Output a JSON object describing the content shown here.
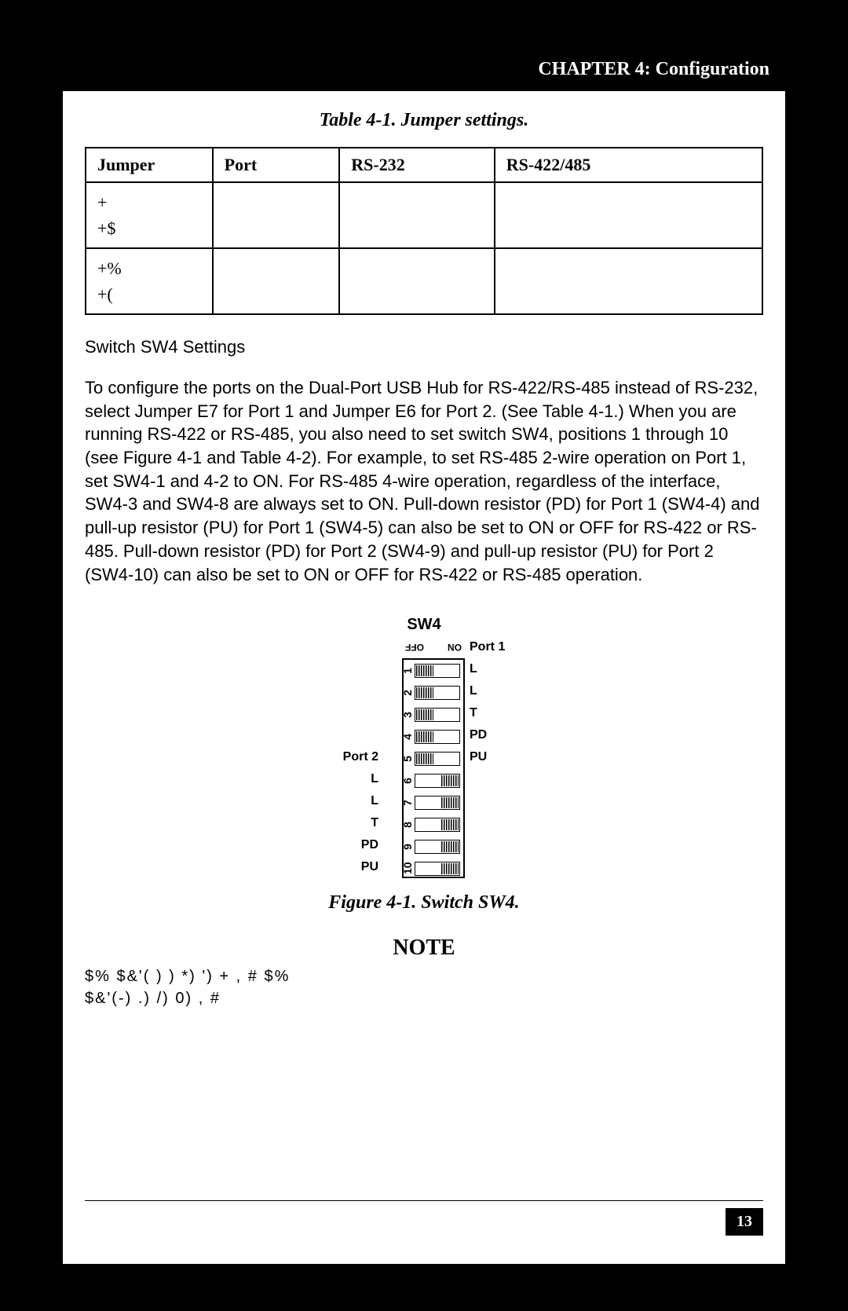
{
  "header": {
    "title": "CHAPTER 4: Configuration"
  },
  "table": {
    "caption": "Table 4-1. Jumper settings.",
    "columns": [
      "Jumper",
      "Port",
      "RS-232",
      "RS-422/485"
    ],
    "rows": [
      [
        "+",
        "",
        "",
        ""
      ],
      [
        "+$",
        "",
        "",
        ""
      ],
      [
        "+%",
        "",
        "",
        ""
      ],
      [
        "+(",
        "",
        "",
        ""
      ]
    ]
  },
  "section": {
    "subhead": "Switch SW4 Settings",
    "paragraph": "To configure the ports on the Dual-Port USB Hub for RS-422/RS-485 instead of RS-232, select Jumper E7 for Port 1 and Jumper E6 for Port 2. (See Table 4-1.) When you are running RS-422 or RS-485, you also need to set switch SW4, positions 1 through 10 (see Figure 4-1 and Table 4-2). For example, to set RS-485 2-wire operation on Port 1, set SW4-1 and 4-2 to ON. For RS-485 4-wire operation, regardless of the interface, SW4-3 and SW4-8 are always set to ON. Pull-down resistor (PD) for Port 1 (SW4-4) and pull-up resistor (PU) for Port 1 (SW4-5) can also be set to ON or OFF for RS-422 or RS-485. Pull-down resistor (PD) for Port 2 (SW4-9) and pull-up resistor (PU) for Port 2 (SW4-10) can also be set to ON or OFF for RS-422 or RS-485 operation."
  },
  "switch_diagram": {
    "title": "SW4",
    "header_left": "OFF",
    "header_right": "ON",
    "port1_label": "Port 1",
    "port2_label": "Port 2",
    "rows": [
      {
        "n": "1",
        "pos": "off",
        "left": "",
        "right": "L"
      },
      {
        "n": "2",
        "pos": "off",
        "left": "",
        "right": "L"
      },
      {
        "n": "3",
        "pos": "off",
        "left": "",
        "right": "T"
      },
      {
        "n": "4",
        "pos": "off",
        "left": "",
        "right": "PD"
      },
      {
        "n": "5",
        "pos": "off",
        "left": "",
        "right": "PU"
      },
      {
        "n": "6",
        "pos": "on",
        "left": "L",
        "right": ""
      },
      {
        "n": "7",
        "pos": "on",
        "left": "L",
        "right": ""
      },
      {
        "n": "8",
        "pos": "on",
        "left": "T",
        "right": ""
      },
      {
        "n": "9",
        "pos": "on",
        "left": "PD",
        "right": ""
      },
      {
        "n": "10",
        "pos": "on",
        "left": "PU",
        "right": ""
      }
    ],
    "caption": "Figure 4-1. Switch SW4."
  },
  "note": {
    "heading": "NOTE",
    "line1": "$%            $&'( )  ) *) ')      +         ,    # $%",
    "line2": "$&'(-) .) /) 0)            ,    #"
  },
  "page_number": "13",
  "colors": {
    "page_bg": "#ffffff",
    "outer_bg": "#000000",
    "text": "#000000",
    "header_bg": "#000000",
    "header_text": "#ffffff"
  }
}
